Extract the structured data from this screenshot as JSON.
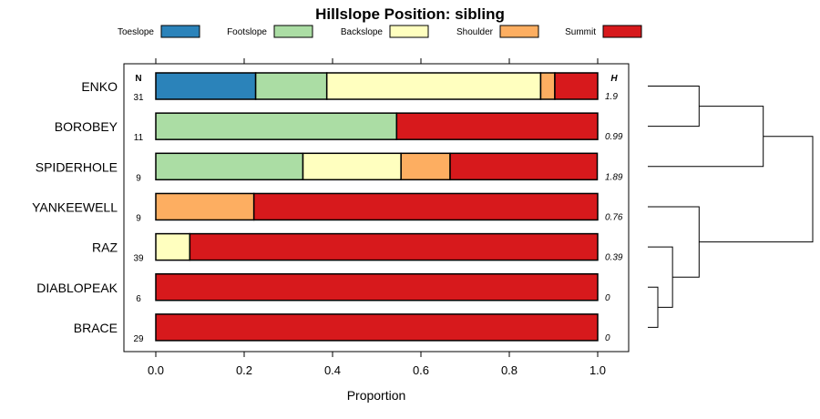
{
  "chart_data": {
    "type": "bar",
    "stacked": true,
    "orientation": "horizontal",
    "title": "Hillslope Position: sibling",
    "xlabel": "Proportion",
    "ylabel": "",
    "xlim": [
      0,
      1
    ],
    "xticks": [
      0.0,
      0.2,
      0.4,
      0.6,
      0.8,
      1.0
    ],
    "xtick_labels": [
      "0.0",
      "0.2",
      "0.4",
      "0.6",
      "0.8",
      "1.0"
    ],
    "legend_position": "top",
    "n_header": "N",
    "h_header": "H",
    "categories": [
      "ENKO",
      "BOROBEY",
      "SPIDERHOLE",
      "YANKEEWELL",
      "RAZ",
      "DIABLOPEAK",
      "BRACE"
    ],
    "n": [
      "31",
      "11",
      "9",
      "9",
      "39",
      "6",
      "29"
    ],
    "h": [
      "1.9",
      "0.99",
      "1.89",
      "0.76",
      "0.39",
      "0",
      "0"
    ],
    "series": [
      {
        "name": "Toeslope",
        "color": "#2b83ba",
        "values": [
          0.226,
          0,
          0,
          0,
          0,
          0,
          0
        ]
      },
      {
        "name": "Footslope",
        "color": "#abdda4",
        "values": [
          0.161,
          0.545,
          0.333,
          0,
          0,
          0,
          0
        ]
      },
      {
        "name": "Backslope",
        "color": "#ffffbf",
        "values": [
          0.484,
          0,
          0.222,
          0,
          0.077,
          0,
          0
        ]
      },
      {
        "name": "Shoulder",
        "color": "#fdae61",
        "values": [
          0.032,
          0,
          0.111,
          0.222,
          0,
          0,
          0
        ]
      },
      {
        "name": "Summit",
        "color": "#d7191c",
        "values": [
          0.097,
          0.455,
          0.333,
          0.778,
          0.923,
          1.0,
          1.0
        ]
      }
    ],
    "dendrogram": {
      "merges": [
        [
          [
            "DIABLOPEAK",
            "BRACE"
          ],
          0.0
        ],
        [
          [
            "DIABLOPEAK+BRACE",
            "RAZ"
          ],
          0.15
        ],
        [
          [
            "DIABLOPEAK+BRACE+RAZ",
            "YANKEEWELL"
          ],
          0.3
        ],
        [
          [
            "ENKO",
            "BOROBEY"
          ],
          0.3
        ],
        [
          [
            "ENKO+BOROBEY",
            "SPIDERHOLE"
          ],
          0.7
        ],
        [
          [
            "all"
          ],
          1.0
        ]
      ]
    }
  }
}
